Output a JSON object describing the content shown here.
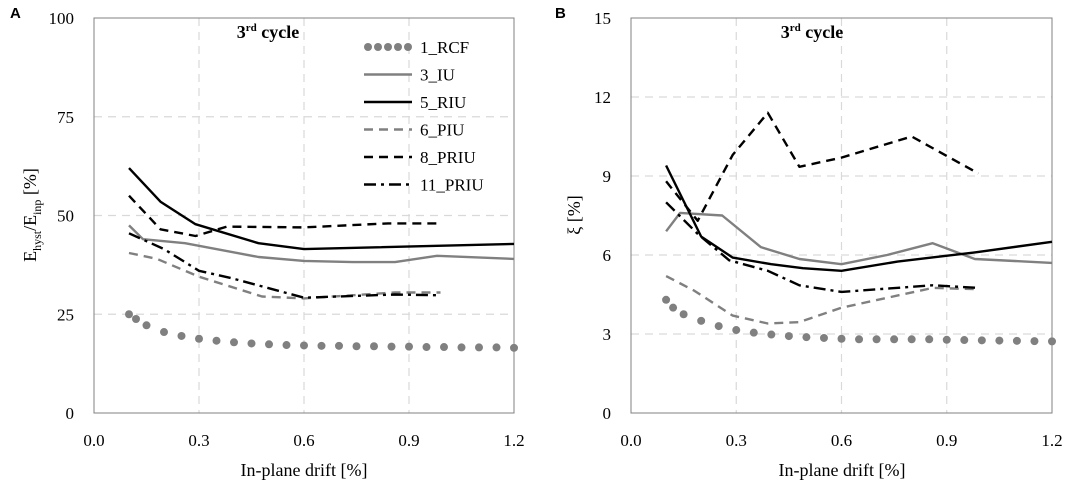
{
  "chart_data": [
    {
      "type": "line",
      "panel_label": "A",
      "title": "3rd cycle",
      "title_base": "3",
      "title_sup": "rd",
      "title_rest": " cycle",
      "xlabel": "In-plane drift [%]",
      "ylabel": "E_hyst/E_inp [%]",
      "ylabel_parts": [
        "E",
        "hyst",
        "/E",
        "inp",
        " [%]"
      ],
      "xlim": [
        0.0,
        1.2
      ],
      "ylim": [
        0,
        100
      ],
      "xticks": [
        "0.0",
        "0.3",
        "0.6",
        "0.9",
        "1.2"
      ],
      "xtick_values": [
        0.0,
        0.3,
        0.6,
        0.9,
        1.2
      ],
      "yticks": [
        "0",
        "25",
        "50",
        "75",
        "100"
      ],
      "ytick_values": [
        0,
        25,
        50,
        75,
        100
      ],
      "grid": true,
      "legend_position": "top-right",
      "series": [
        {
          "name": "1_RCF",
          "color": "#808080",
          "style": "dots",
          "x": [
            0.1,
            0.12,
            0.15,
            0.2,
            0.25,
            0.3,
            0.35,
            0.4,
            0.45,
            0.5,
            0.55,
            0.6,
            0.65,
            0.7,
            0.75,
            0.8,
            0.85,
            0.9,
            0.95,
            1.0,
            1.05,
            1.1,
            1.15,
            1.2
          ],
          "values": [
            25,
            23.8,
            22.2,
            20.5,
            19.5,
            18.8,
            18.3,
            17.9,
            17.6,
            17.4,
            17.2,
            17.1,
            17.0,
            17.0,
            16.9,
            16.9,
            16.8,
            16.8,
            16.7,
            16.7,
            16.6,
            16.6,
            16.6,
            16.5
          ]
        },
        {
          "name": "3_IU",
          "color": "#808080",
          "style": "solid",
          "x": [
            0.1,
            0.14,
            0.26,
            0.47,
            0.6,
            0.74,
            0.86,
            0.98,
            1.2
          ],
          "values": [
            47.5,
            44,
            43,
            39.5,
            38.5,
            38.2,
            38.2,
            39.8,
            39
          ]
        },
        {
          "name": "5_RIU",
          "color": "#000000",
          "style": "solid",
          "x": [
            0.1,
            0.19,
            0.29,
            0.47,
            0.6,
            1.2
          ],
          "values": [
            62,
            53.5,
            47.8,
            43,
            41.5,
            42.8
          ]
        },
        {
          "name": "6_PIU",
          "color": "#808080",
          "style": "dashed",
          "x": [
            0.1,
            0.18,
            0.3,
            0.48,
            0.6,
            0.86,
            0.99
          ],
          "values": [
            40.5,
            39,
            34.5,
            29.5,
            29,
            30.5,
            30.5
          ]
        },
        {
          "name": "8_PRIU",
          "color": "#000000",
          "style": "dashed",
          "x": [
            0.1,
            0.19,
            0.29,
            0.38,
            0.6,
            0.84,
            0.99
          ],
          "values": [
            55,
            46.5,
            44.8,
            47.2,
            47,
            48,
            48
          ]
        },
        {
          "name": "11_PRIU",
          "color": "#000000",
          "style": "dashdot",
          "x": [
            0.1,
            0.2,
            0.3,
            0.39,
            0.6,
            0.86,
            0.99
          ],
          "values": [
            45.5,
            41.5,
            36,
            34.2,
            29.2,
            30,
            29.8
          ]
        }
      ]
    },
    {
      "type": "line",
      "panel_label": "B",
      "title": "3rd cycle",
      "title_base": "3",
      "title_sup": "rd",
      "title_rest": " cycle",
      "xlabel": "In-plane drift [%]",
      "ylabel": "ξ [%]",
      "xlim": [
        0.0,
        1.2
      ],
      "ylim": [
        0,
        15
      ],
      "xticks": [
        "0.0",
        "0.3",
        "0.6",
        "0.9",
        "1.2"
      ],
      "xtick_values": [
        0.0,
        0.3,
        0.6,
        0.9,
        1.2
      ],
      "yticks": [
        "0",
        "3",
        "6",
        "9",
        "12",
        "15"
      ],
      "ytick_values": [
        0,
        3,
        6,
        9,
        12,
        15
      ],
      "grid": true,
      "legend_position": "none",
      "series": [
        {
          "name": "1_RCF",
          "color": "#808080",
          "style": "dots",
          "x": [
            0.1,
            0.12,
            0.15,
            0.2,
            0.25,
            0.3,
            0.35,
            0.4,
            0.45,
            0.5,
            0.55,
            0.6,
            0.65,
            0.7,
            0.75,
            0.8,
            0.85,
            0.9,
            0.95,
            1.0,
            1.05,
            1.1,
            1.15,
            1.2
          ],
          "values": [
            4.3,
            4.0,
            3.75,
            3.5,
            3.3,
            3.15,
            3.05,
            2.98,
            2.92,
            2.88,
            2.85,
            2.82,
            2.8,
            2.8,
            2.8,
            2.8,
            2.8,
            2.78,
            2.77,
            2.76,
            2.75,
            2.74,
            2.73,
            2.72
          ]
        },
        {
          "name": "3_IU",
          "color": "#808080",
          "style": "solid",
          "x": [
            0.1,
            0.14,
            0.26,
            0.37,
            0.48,
            0.6,
            0.73,
            0.86,
            0.98,
            1.2
          ],
          "values": [
            6.9,
            7.6,
            7.5,
            6.3,
            5.85,
            5.65,
            6.0,
            6.45,
            5.85,
            5.7
          ]
        },
        {
          "name": "5_RIU",
          "color": "#000000",
          "style": "solid",
          "x": [
            0.1,
            0.2,
            0.29,
            0.4,
            0.49,
            0.6,
            0.76,
            0.98,
            1.2
          ],
          "values": [
            9.4,
            6.7,
            5.9,
            5.65,
            5.5,
            5.4,
            5.75,
            6.1,
            6.5
          ]
        },
        {
          "name": "6_PIU",
          "color": "#808080",
          "style": "dashed",
          "x": [
            0.1,
            0.18,
            0.29,
            0.39,
            0.48,
            0.6,
            0.86,
            0.99
          ],
          "values": [
            5.2,
            4.65,
            3.7,
            3.4,
            3.45,
            4.0,
            4.75,
            4.7
          ]
        },
        {
          "name": "8_PRIU",
          "color": "#000000",
          "style": "dashed",
          "x": [
            0.1,
            0.19,
            0.29,
            0.39,
            0.48,
            0.6,
            0.8,
            0.99
          ],
          "values": [
            8.8,
            7.3,
            9.8,
            11.4,
            9.35,
            9.7,
            10.5,
            9.1
          ]
        },
        {
          "name": "11_PRIU",
          "color": "#000000",
          "style": "dashdot",
          "x": [
            0.1,
            0.19,
            0.28,
            0.39,
            0.48,
            0.6,
            0.86,
            0.99
          ],
          "values": [
            8.0,
            6.8,
            5.8,
            5.4,
            4.85,
            4.6,
            4.85,
            4.75
          ]
        }
      ]
    }
  ]
}
